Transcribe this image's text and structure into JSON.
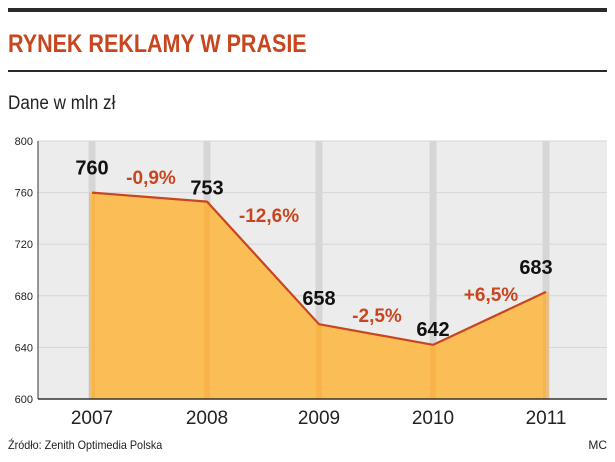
{
  "header": {
    "title": "RYNEK REKLAMY W PRASIE",
    "subtitle": "Dane w mln zł"
  },
  "footer": {
    "source": "Źródło: Zenith Optimedia Polska",
    "author": "MC"
  },
  "colors": {
    "title": "#c8461f",
    "line": "#c8461f",
    "fill": "#fbbd55",
    "change_label": "#c8461f",
    "gridline": "#d6d6d6",
    "panel": "#ececec"
  },
  "chart_data": {
    "type": "area",
    "x": [
      "2007",
      "2008",
      "2009",
      "2010",
      "2011"
    ],
    "series": [
      {
        "values": [
          760,
          753,
          658,
          642,
          683
        ]
      }
    ],
    "value_labels": [
      "760",
      "753",
      "658",
      "642",
      "683"
    ],
    "change_labels": [
      "-0,9%",
      "-12,6%",
      "-2,5%",
      "+6,5%"
    ],
    "yticks": [
      "600",
      "640",
      "680",
      "720",
      "760",
      "800"
    ],
    "ylim": [
      600,
      800
    ],
    "grid": true
  }
}
